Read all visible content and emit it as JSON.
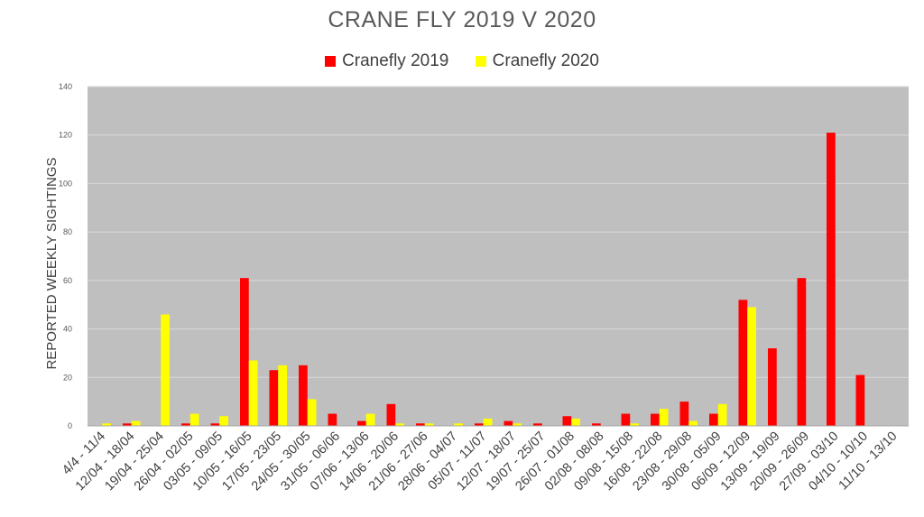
{
  "chart_data": {
    "type": "bar",
    "title": "CRANE FLY 2019 V 2020",
    "ylabel": "REPORTED WEEKLY SIGHTINGS",
    "xlabel": "",
    "ylim": [
      0,
      140
    ],
    "yticks": [
      0,
      20,
      40,
      60,
      80,
      100,
      120,
      140
    ],
    "grid": true,
    "legend_position": "top-center",
    "categories": [
      "4/4 - 11/4",
      "12/04 - 18/04",
      "19/04 - 25/04",
      "26/04 - 02/05",
      "03/05 - 09/05",
      "10/05 - 16/05",
      "17/05 - 23/05",
      "24/05 - 30/05",
      "31/05 - 06/06",
      "07/06 - 13/06",
      "14/06 - 20/06",
      "21/06 - 27/06",
      "28/06 - 04/07",
      "05/07 - 11/07",
      "12/07 - 18/07",
      "19/07 - 25/07",
      "26/07 - 01/08",
      "02/08 - 08/08",
      "09/08 - 15/08",
      "16/08 - 22/08",
      "23/08 - 29/08",
      "30/08 - 05/09",
      "06/09 - 12/09",
      "13/09 - 19/09",
      "20/09 - 26/09",
      "27/09 - 03/10",
      "04/10 - 10/10",
      "11/10 - 13/10"
    ],
    "series": [
      {
        "name": "Cranefly 2019",
        "color": "#ff0000",
        "values": [
          0,
          1,
          0,
          1,
          1,
          61,
          23,
          25,
          5,
          2,
          9,
          1,
          0,
          1,
          2,
          1,
          4,
          1,
          5,
          5,
          10,
          5,
          52,
          32,
          61,
          121,
          21,
          0
        ]
      },
      {
        "name": "Cranefly 2020",
        "color": "#ffff00",
        "values": [
          1,
          2,
          46,
          5,
          4,
          27,
          25,
          11,
          0,
          5,
          1,
          1,
          1,
          3,
          1,
          0,
          3,
          0,
          1,
          7,
          2,
          9,
          49,
          0,
          0,
          0,
          0,
          0
        ]
      }
    ]
  },
  "colors": {
    "plot_background": "#bfbfbf",
    "gridline": "#d9d9d9"
  }
}
